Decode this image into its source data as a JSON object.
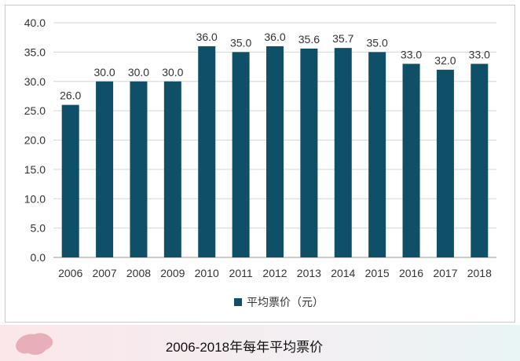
{
  "chart_data": {
    "type": "bar",
    "categories": [
      "2006",
      "2007",
      "2008",
      "2009",
      "2010",
      "2011",
      "2012",
      "2013",
      "2014",
      "2015",
      "2016",
      "2017",
      "2018"
    ],
    "series": [
      {
        "name": "平均票价（元）",
        "values": [
          26.0,
          30.0,
          30.0,
          30.0,
          36.0,
          35.0,
          36.0,
          35.6,
          35.7,
          35.0,
          33.0,
          32.0,
          33.0
        ],
        "labels": [
          "26.0",
          "30.0",
          "30.0",
          "30.0",
          "36.0",
          "35.0",
          "36.0",
          "35.6",
          "35.7",
          "35.0",
          "33.0",
          "32.0",
          "33.0"
        ]
      }
    ],
    "ylim": [
      0,
      40
    ],
    "yticks": [
      "0.0",
      "5.0",
      "10.0",
      "15.0",
      "20.0",
      "25.0",
      "30.0",
      "35.0",
      "40.0"
    ],
    "grid": true,
    "legend": "bottom-center",
    "bar_color": "#0f5068"
  },
  "caption": "2006-2018年每年平均票价"
}
